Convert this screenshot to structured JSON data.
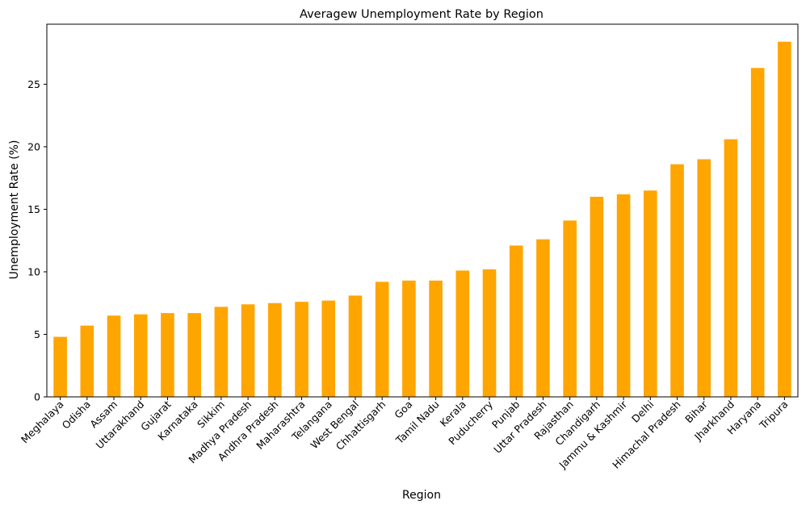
{
  "chart_data": {
    "type": "bar",
    "title": "Averagew Unemployment Rate by Region",
    "xlabel": "Region",
    "ylabel": "Unemployment Rate (%)",
    "ylim": [
      0,
      29.8
    ],
    "yticks": [
      0,
      5,
      10,
      15,
      20,
      25
    ],
    "grid": false,
    "color": "#ffa500",
    "categories": [
      "Meghalaya",
      "Odisha",
      "Assam",
      "Uttarakhand",
      "Gujarat",
      "Karnataka",
      "Sikkim",
      "Madhya Pradesh",
      "Andhra Pradesh",
      "Maharashtra",
      "Telangana",
      "West Bengal",
      "Chhattisgarh",
      "Goa",
      "Tamil Nadu",
      "Kerala",
      "Puducherry",
      "Punjab",
      "Uttar Pradesh",
      "Rajasthan",
      "Chandigarh",
      "Jammu & Kashmir",
      "Delhi",
      "Himachal Pradesh",
      "Bihar",
      "Jharkhand",
      "Haryana",
      "Tripura"
    ],
    "values": [
      4.8,
      5.7,
      6.5,
      6.6,
      6.7,
      6.7,
      7.2,
      7.4,
      7.5,
      7.6,
      7.7,
      8.1,
      9.2,
      9.3,
      9.3,
      10.1,
      10.2,
      12.1,
      12.6,
      14.1,
      16.0,
      16.2,
      16.5,
      18.6,
      19.0,
      20.6,
      26.3,
      28.4
    ]
  }
}
